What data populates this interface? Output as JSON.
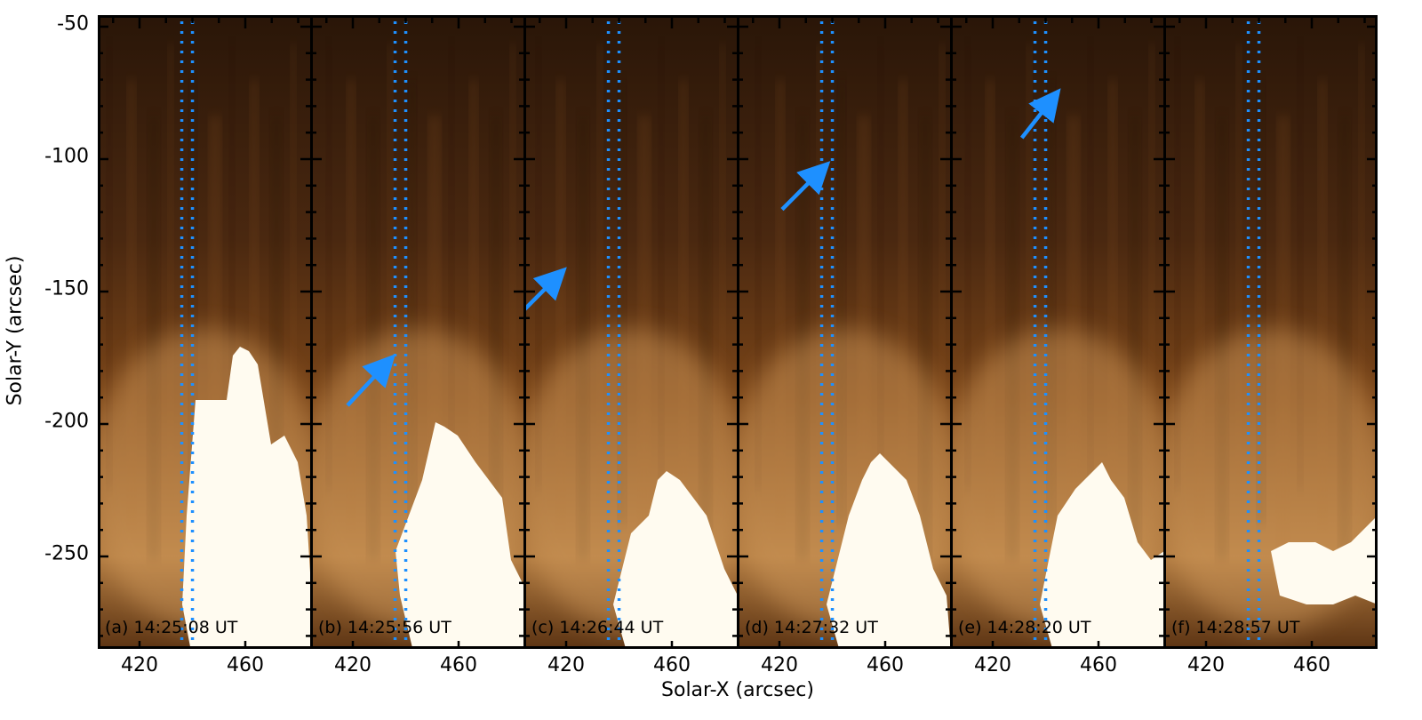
{
  "axes": {
    "xlabel": "Solar-X (arcsec)",
    "ylabel": "Solar-Y (arcsec)",
    "yticks": [
      "-50",
      "-100",
      "-150",
      "-200",
      "-250"
    ],
    "xticks": [
      "420",
      "460"
    ]
  },
  "panels": [
    {
      "label": "(a) 14:25:08 UT",
      "arrow": null
    },
    {
      "label": "(b) 14:25:56 UT",
      "arrow": {
        "tip": [
          432,
          -178
        ],
        "tail": [
          418,
          -193
        ]
      }
    },
    {
      "label": "(c) 14:26:44 UT",
      "arrow": {
        "tip": [
          416,
          -145
        ],
        "tail": [
          402,
          -159
        ]
      }
    },
    {
      "label": "(d) 14:27:32 UT",
      "arrow": {
        "tip": [
          435,
          -105
        ],
        "tail": [
          421,
          -119
        ]
      }
    },
    {
      "label": "(e) 14:28:20 UT",
      "arrow": {
        "tip": [
          442,
          -78
        ],
        "tail": [
          431,
          -92
        ]
      }
    },
    {
      "label": "(f) 14:28:57 UT",
      "arrow": null
    }
  ],
  "colors": {
    "arrow": "#1e90ff",
    "slit": "#1e90ff",
    "dark": "#2a1608",
    "mid": "#7a4518",
    "bright": "#fffbf0"
  }
}
